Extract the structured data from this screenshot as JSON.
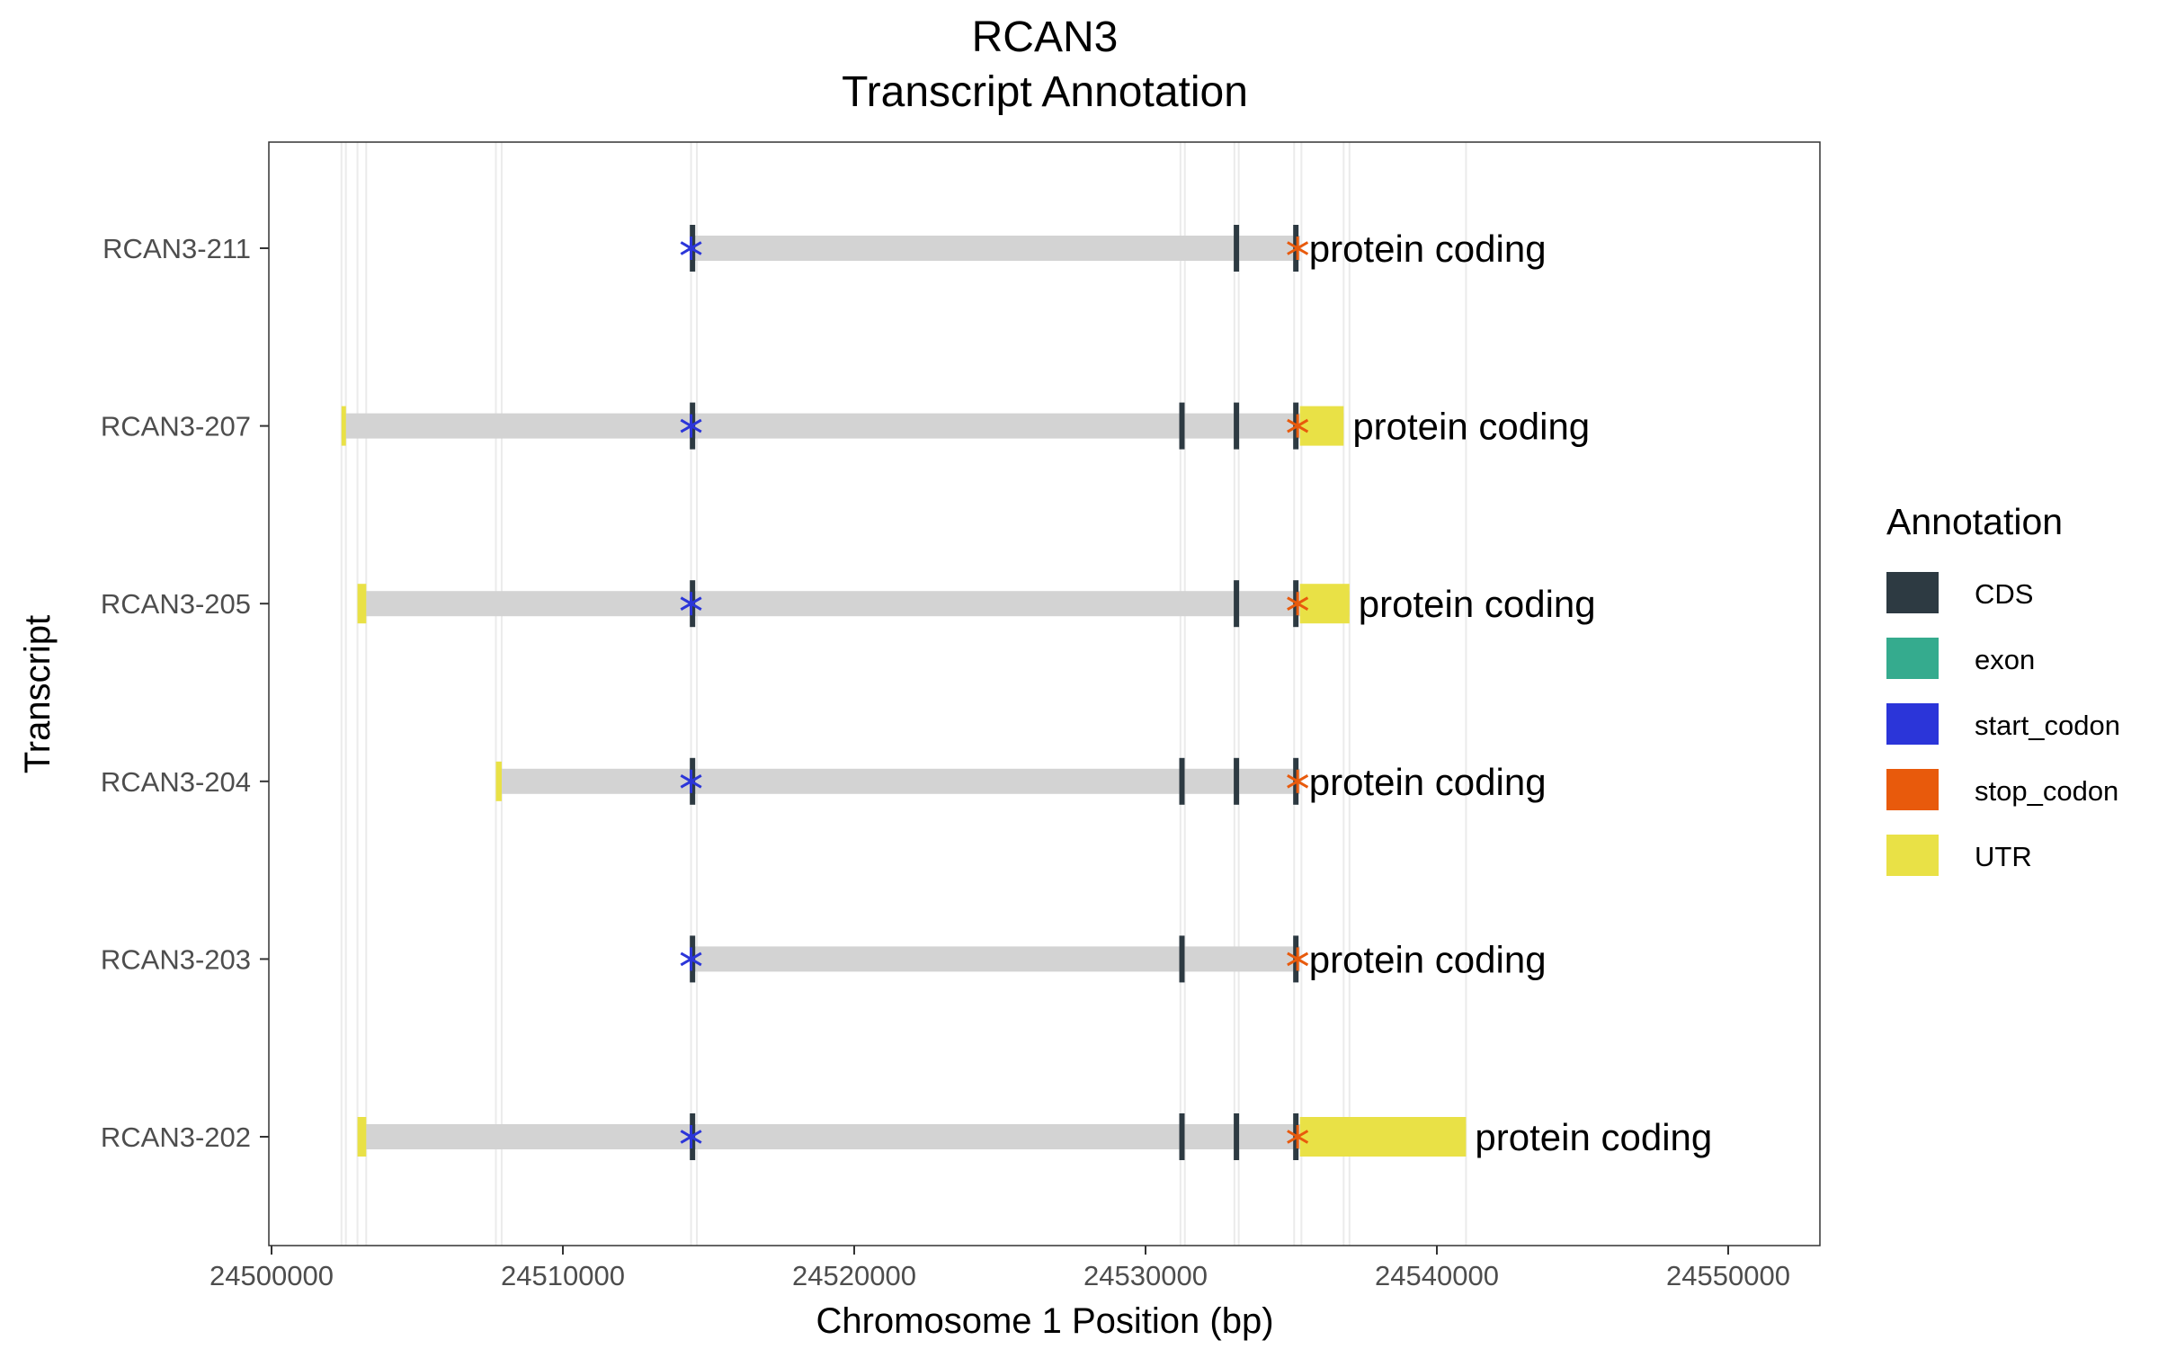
{
  "chart_data": {
    "type": "gene-annotation",
    "title": "RCAN3",
    "subtitle": "Transcript Annotation",
    "xlabel": "Chromosome 1 Position (bp)",
    "ylabel": "Transcript",
    "xlim": [
      24500000,
      24553000
    ],
    "x_ticks": [
      24500000,
      24510000,
      24520000,
      24530000,
      24540000,
      24550000
    ],
    "x_tick_labels": [
      "24500000",
      "24510000",
      "24520000",
      "24530000",
      "24540000",
      "24550000"
    ],
    "grid": true,
    "legend": {
      "title": "Annotation",
      "placement": "right",
      "items": [
        {
          "label": "CDS",
          "color": "#2d3a42"
        },
        {
          "label": "exon",
          "color": "#35ab8e"
        },
        {
          "label": "start_codon",
          "color": "#2b35d9"
        },
        {
          "label": "stop_codon",
          "color": "#e85a0c"
        },
        {
          "label": "UTR",
          "color": "#e9e146"
        }
      ]
    },
    "colors": {
      "intron": "#d3d3d3",
      "CDS": "#2d3a42",
      "start_codon": "#2b35d9",
      "stop_codon": "#e85a0c",
      "UTR": "#e9e146",
      "gridline": "#ebebeb"
    },
    "transcripts": [
      {
        "name": "RCAN3-211",
        "biotype": "protein coding",
        "start": 24514400,
        "end": 24535300,
        "utr": [],
        "cds": [
          24514450,
          24533120,
          24535160
        ],
        "start_codon": 24514400,
        "stop_codon": 24535220
      },
      {
        "name": "RCAN3-207",
        "biotype": "protein coding",
        "start": 24502400,
        "end": 24536800,
        "utr": [
          [
            24502400,
            24502550
          ],
          [
            24535300,
            24536800
          ]
        ],
        "cds": [
          24514450,
          24531250,
          24533120,
          24535160
        ],
        "start_codon": 24514400,
        "stop_codon": 24535220
      },
      {
        "name": "RCAN3-205",
        "biotype": "protein coding",
        "start": 24502950,
        "end": 24537000,
        "utr": [
          [
            24502950,
            24503250
          ],
          [
            24535300,
            24537000
          ]
        ],
        "cds": [
          24514450,
          24533120,
          24535160
        ],
        "start_codon": 24514400,
        "stop_codon": 24535220
      },
      {
        "name": "RCAN3-204",
        "biotype": "protein coding",
        "start": 24507700,
        "end": 24535300,
        "utr": [
          [
            24507700,
            24507900
          ]
        ],
        "cds": [
          24514450,
          24531250,
          24533120,
          24535160
        ],
        "start_codon": 24514400,
        "stop_codon": 24535220
      },
      {
        "name": "RCAN3-203",
        "biotype": "protein coding",
        "start": 24514400,
        "end": 24535300,
        "utr": [],
        "cds": [
          24514450,
          24531250,
          24535160
        ],
        "start_codon": 24514400,
        "stop_codon": 24535220
      },
      {
        "name": "RCAN3-202",
        "biotype": "protein coding",
        "start": 24502950,
        "end": 24541000,
        "utr": [
          [
            24502950,
            24503250
          ],
          [
            24535300,
            24541000
          ]
        ],
        "cds": [
          24514450,
          24531250,
          24533120,
          24535160
        ],
        "start_codon": 24514400,
        "stop_codon": 24535220
      }
    ],
    "vertical_gridlines": [
      24502400,
      24502550,
      24502950,
      24503250,
      24507700,
      24507900,
      24514400,
      24514600,
      24531200,
      24531350,
      24533050,
      24533200,
      24535100,
      24535350,
      24536800,
      24537000,
      24541000
    ]
  }
}
